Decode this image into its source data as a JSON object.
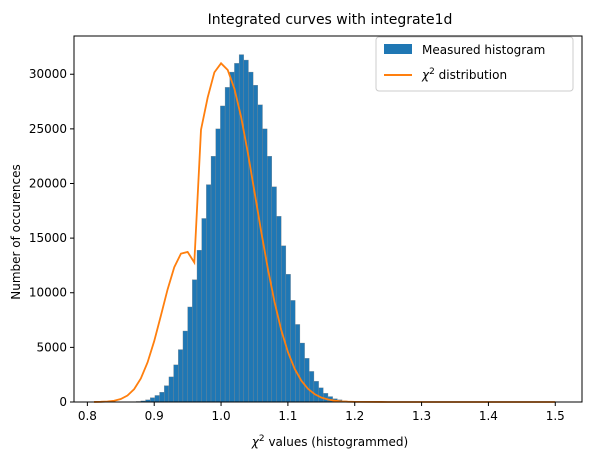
{
  "chart_data": {
    "type": "bar",
    "title": "Integrated curves with integrate1d",
    "xlabel_pre": "χ",
    "xlabel_sup": "2",
    "xlabel_post": " values (histogrammed)",
    "ylabel": "Number of occurences",
    "xlim": [
      0.78,
      1.54
    ],
    "ylim": [
      0,
      33500
    ],
    "x_ticks": [
      0.8,
      0.9,
      1.0,
      1.1,
      1.2,
      1.3,
      1.4,
      1.5
    ],
    "x_tick_labels": [
      "0.8",
      "0.9",
      "1.0",
      "1.1",
      "1.2",
      "1.3",
      "1.4",
      "1.5"
    ],
    "y_ticks": [
      0,
      5000,
      10000,
      15000,
      20000,
      25000,
      30000
    ],
    "y_tick_labels": [
      "0",
      "5000",
      "10000",
      "15000",
      "20000",
      "25000",
      "30000"
    ],
    "grid": false,
    "legend_position": "top-right",
    "histogram": {
      "name": "Measured histogram",
      "color": "#1f77b4",
      "edge_color": "#888888",
      "bin_start": 0.81,
      "bin_width": 0.007,
      "counts": [
        0,
        0,
        0,
        0,
        0,
        0,
        0,
        0,
        0,
        50,
        100,
        200,
        400,
        600,
        900,
        1500,
        2300,
        3400,
        4800,
        6500,
        8700,
        11200,
        13900,
        16800,
        19900,
        22500,
        25000,
        27100,
        28800,
        30200,
        31000,
        31800,
        31300,
        30200,
        29000,
        27200,
        25000,
        22500,
        19700,
        17000,
        14300,
        11700,
        9300,
        7100,
        5400,
        4000,
        2800,
        1900,
        1300,
        800,
        500,
        300,
        200,
        100,
        50,
        0
      ]
    },
    "curve": {
      "name_pre": "χ",
      "name_sup": "2",
      "name_post": " distribution",
      "color": "#ff7f0e",
      "x": [
        0.81,
        0.82,
        0.83,
        0.84,
        0.85,
        0.86,
        0.87,
        0.88,
        0.89,
        0.9,
        0.91,
        0.92,
        0.93,
        0.94,
        0.95,
        0.96,
        0.97,
        0.98,
        0.99,
        1.0,
        1.01,
        1.02,
        1.03,
        1.04,
        1.05,
        1.06,
        1.07,
        1.08,
        1.09,
        1.1,
        1.11,
        1.12,
        1.13,
        1.14,
        1.15,
        1.16,
        1.17,
        1.18,
        1.19,
        1.2,
        1.25,
        1.3,
        1.35,
        1.4,
        1.45,
        1.5
      ],
      "y": [
        6,
        16,
        45,
        116,
        273,
        592,
        1178,
        2153,
        3615,
        5577,
        7906,
        10301,
        12339,
        13580,
        13734,
        12765,
        24917,
        27870,
        30170,
        31000,
        30383,
        28670,
        26090,
        22840,
        19250,
        15610,
        12210,
        9150,
        6600,
        4580,
        3060,
        1960,
        1210,
        720,
        410,
        230,
        120,
        60,
        30,
        15,
        1,
        0,
        0,
        0,
        0,
        0
      ]
    }
  }
}
